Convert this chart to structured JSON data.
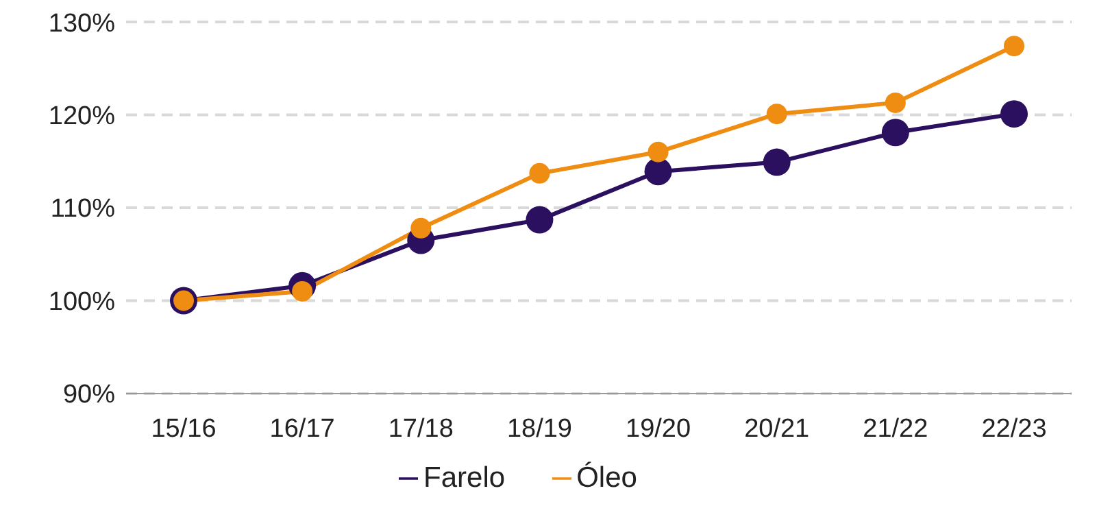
{
  "chart_data": {
    "type": "line",
    "categories": [
      "15/16",
      "16/17",
      "17/18",
      "18/19",
      "19/20",
      "20/21",
      "21/22",
      "22/23"
    ],
    "series": [
      {
        "name": "Farelo",
        "color": "#2b1060",
        "values": [
          100,
          101.6,
          106.5,
          108.7,
          113.9,
          114.9,
          118.1,
          120.1
        ]
      },
      {
        "name": "Óleo",
        "color": "#ef8c12",
        "values": [
          100,
          101,
          107.8,
          113.7,
          116,
          120.1,
          121.3,
          127.4
        ]
      }
    ],
    "ylim": [
      90,
      130
    ],
    "yticks": [
      {
        "value": 90,
        "label": "90%"
      },
      {
        "value": 100,
        "label": "100%"
      },
      {
        "value": 110,
        "label": "110%"
      },
      {
        "value": 120,
        "label": "120%"
      },
      {
        "value": 130,
        "label": "130%"
      }
    ],
    "grid": "y",
    "legend": "bottom",
    "marker": "circle",
    "line_style": "solid"
  }
}
